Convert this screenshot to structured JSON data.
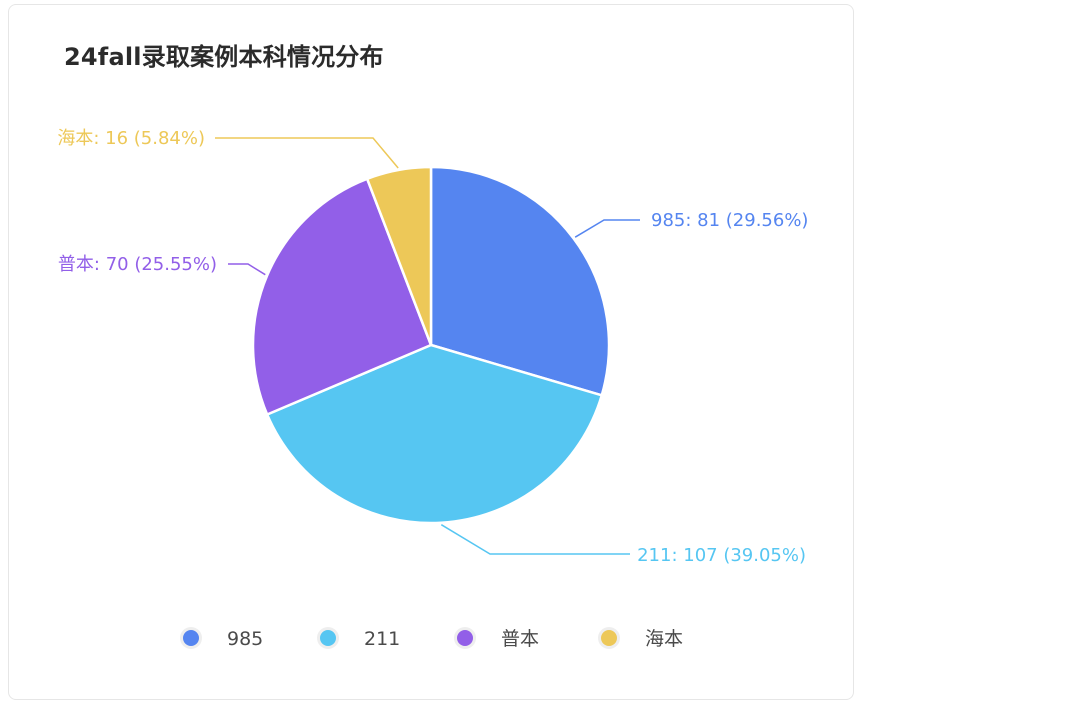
{
  "title": "24fall录取案例本科情况分布",
  "chart_data": {
    "type": "pie",
    "title": "24fall录取案例本科情况分布",
    "slices": [
      {
        "name": "985",
        "value": 81,
        "percent": "29.56%",
        "label": "985: 81 (29.56%)",
        "color": "#5585F0"
      },
      {
        "name": "211",
        "value": 107,
        "percent": "39.05%",
        "label": "211: 107 (39.05%)",
        "color": "#56C6F2"
      },
      {
        "name": "普本",
        "value": 70,
        "percent": "25.55%",
        "label": "普本: 70 (25.55%)",
        "color": "#925FE8"
      },
      {
        "name": "海本",
        "value": 16,
        "percent": "5.84%",
        "label": "海本: 16 (5.84%)",
        "color": "#EDC858"
      }
    ],
    "legend": {
      "placement": "bottom",
      "entries": [
        "985",
        "211",
        "普本",
        "海本"
      ]
    }
  }
}
